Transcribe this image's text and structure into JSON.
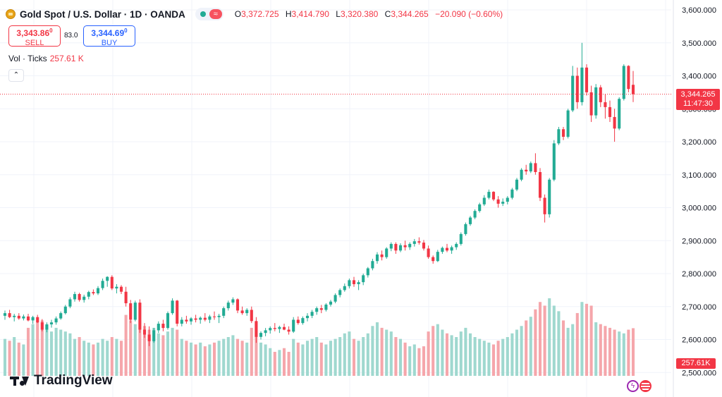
{
  "header": {
    "symbol_title": "Gold Spot / U.S. Dollar · 1D · OANDA",
    "ohlc": {
      "o_label": "O",
      "o_value": "3,372.725",
      "h_label": "H",
      "h_value": "3,414.790",
      "l_label": "L",
      "l_value": "3,320.380",
      "c_label": "C",
      "c_value": "3,344.265",
      "change": "−20.090 (−0.60%)"
    }
  },
  "trade": {
    "sell_price": "3,343.86",
    "sell_price_sup": "0",
    "sell_label": "SELL",
    "spread": "83.0",
    "buy_price": "3,344.69",
    "buy_price_sup": "0",
    "buy_label": "BUY"
  },
  "volume_legend": {
    "label": "Vol · Ticks",
    "value": "257.61 K"
  },
  "collapse_glyph": "⌃",
  "price_scale": {
    "last_price": "3,344.265",
    "countdown": "11:47:30",
    "volume_tag": "257.61K"
  },
  "branding": {
    "name": "TradingView"
  },
  "icons": [
    "gold-coin-icon",
    "green-dot-icon",
    "wave-icon",
    "chevron-up-icon",
    "tradingview-logo-icon",
    "lightning-icon",
    "us-flag-icon"
  ],
  "colors": {
    "up": "#22ab94",
    "down": "#f23645",
    "vol_up": "#9fd8cf",
    "vol_down": "#f5a6ab",
    "grid": "#f0f3fa",
    "text": "#131722"
  },
  "chart_data": {
    "type": "candlestick",
    "y_axis": {
      "ticks": [
        2500,
        2600,
        2700,
        2800,
        2900,
        3000,
        3100,
        3200,
        3300,
        3400,
        3500,
        3600
      ],
      "tick_labels": [
        "2,500.000",
        "2,600.000",
        "2,700.000",
        "2,800.000",
        "2,900.000",
        "3,000.000",
        "3,100.000",
        "3,200.000",
        "3,300.000",
        "3,400.000",
        "3,500.000",
        "3,600.000"
      ],
      "range": [
        2470,
        3610
      ]
    },
    "last_price": 3344.265,
    "vol_max_k": 420,
    "candles": [
      [
        2672,
        2688,
        2660,
        2680,
        200
      ],
      [
        2680,
        2690,
        2665,
        2668,
        190
      ],
      [
        2668,
        2678,
        2655,
        2672,
        210
      ],
      [
        2672,
        2680,
        2660,
        2664,
        180
      ],
      [
        2664,
        2676,
        2658,
        2670,
        170
      ],
      [
        2670,
        2678,
        2655,
        2658,
        260
      ],
      [
        2658,
        2672,
        2648,
        2668,
        280
      ],
      [
        2668,
        2675,
        2650,
        2652,
        290
      ],
      [
        2652,
        2662,
        2625,
        2630,
        300
      ],
      [
        2630,
        2652,
        2622,
        2646,
        270
      ],
      [
        2646,
        2660,
        2636,
        2652,
        240
      ],
      [
        2652,
        2670,
        2645,
        2664,
        260
      ],
      [
        2664,
        2685,
        2660,
        2680,
        250
      ],
      [
        2680,
        2705,
        2676,
        2700,
        240
      ],
      [
        2700,
        2728,
        2695,
        2722,
        230
      ],
      [
        2722,
        2745,
        2715,
        2738,
        200
      ],
      [
        2738,
        2742,
        2715,
        2720,
        210
      ],
      [
        2720,
        2736,
        2712,
        2730,
        190
      ],
      [
        2730,
        2748,
        2722,
        2744,
        180
      ],
      [
        2744,
        2752,
        2735,
        2740,
        170
      ],
      [
        2740,
        2762,
        2735,
        2756,
        180
      ],
      [
        2756,
        2785,
        2750,
        2778,
        200
      ],
      [
        2778,
        2792,
        2760,
        2790,
        190
      ],
      [
        2790,
        2795,
        2750,
        2755,
        210
      ],
      [
        2755,
        2768,
        2740,
        2760,
        200
      ],
      [
        2760,
        2765,
        2738,
        2745,
        190
      ],
      [
        2745,
        2760,
        2700,
        2710,
        330
      ],
      [
        2710,
        2720,
        2650,
        2660,
        300
      ],
      [
        2660,
        2718,
        2655,
        2712,
        280
      ],
      [
        2712,
        2722,
        2620,
        2630,
        300
      ],
      [
        2630,
        2650,
        2605,
        2615,
        270
      ],
      [
        2615,
        2640,
        2580,
        2595,
        250
      ],
      [
        2595,
        2635,
        2590,
        2628,
        260
      ],
      [
        2628,
        2655,
        2620,
        2648,
        230
      ],
      [
        2648,
        2660,
        2625,
        2635,
        220
      ],
      [
        2635,
        2685,
        2630,
        2680,
        240
      ],
      [
        2680,
        2725,
        2675,
        2718,
        260
      ],
      [
        2718,
        2720,
        2640,
        2648,
        250
      ],
      [
        2648,
        2668,
        2640,
        2660,
        200
      ],
      [
        2660,
        2672,
        2648,
        2655,
        190
      ],
      [
        2655,
        2668,
        2645,
        2664,
        180
      ],
      [
        2664,
        2675,
        2652,
        2660,
        170
      ],
      [
        2660,
        2670,
        2648,
        2666,
        180
      ],
      [
        2666,
        2680,
        2655,
        2660,
        160
      ],
      [
        2660,
        2675,
        2650,
        2670,
        170
      ],
      [
        2670,
        2685,
        2660,
        2668,
        180
      ],
      [
        2668,
        2678,
        2650,
        2672,
        190
      ],
      [
        2672,
        2700,
        2665,
        2695,
        200
      ],
      [
        2695,
        2718,
        2688,
        2712,
        210
      ],
      [
        2712,
        2728,
        2705,
        2722,
        220
      ],
      [
        2722,
        2725,
        2680,
        2688,
        200
      ],
      [
        2688,
        2700,
        2675,
        2680,
        190
      ],
      [
        2680,
        2695,
        2672,
        2690,
        180
      ],
      [
        2690,
        2700,
        2650,
        2656,
        260
      ],
      [
        2656,
        2668,
        2590,
        2608,
        290
      ],
      [
        2608,
        2625,
        2600,
        2620,
        180
      ],
      [
        2620,
        2635,
        2610,
        2628,
        170
      ],
      [
        2628,
        2640,
        2618,
        2635,
        150
      ],
      [
        2635,
        2650,
        2625,
        2632,
        130
      ],
      [
        2632,
        2642,
        2620,
        2638,
        140
      ],
      [
        2638,
        2648,
        2628,
        2630,
        150
      ],
      [
        2630,
        2640,
        2615,
        2624,
        130
      ],
      [
        2624,
        2668,
        2620,
        2660,
        200
      ],
      [
        2660,
        2670,
        2645,
        2650,
        180
      ],
      [
        2650,
        2670,
        2645,
        2665,
        170
      ],
      [
        2665,
        2680,
        2655,
        2672,
        190
      ],
      [
        2672,
        2690,
        2665,
        2684,
        200
      ],
      [
        2684,
        2700,
        2675,
        2695,
        210
      ],
      [
        2695,
        2705,
        2680,
        2690,
        180
      ],
      [
        2690,
        2710,
        2685,
        2706,
        170
      ],
      [
        2706,
        2720,
        2700,
        2715,
        190
      ],
      [
        2715,
        2740,
        2710,
        2735,
        200
      ],
      [
        2735,
        2755,
        2728,
        2750,
        210
      ],
      [
        2750,
        2770,
        2745,
        2762,
        230
      ],
      [
        2762,
        2785,
        2755,
        2780,
        240
      ],
      [
        2780,
        2790,
        2760,
        2768,
        200
      ],
      [
        2768,
        2780,
        2750,
        2774,
        190
      ],
      [
        2774,
        2800,
        2765,
        2795,
        210
      ],
      [
        2795,
        2820,
        2788,
        2816,
        230
      ],
      [
        2816,
        2845,
        2810,
        2838,
        270
      ],
      [
        2838,
        2865,
        2830,
        2858,
        290
      ],
      [
        2858,
        2870,
        2840,
        2850,
        260
      ],
      [
        2850,
        2880,
        2845,
        2876,
        250
      ],
      [
        2876,
        2895,
        2868,
        2890,
        240
      ],
      [
        2890,
        2895,
        2860,
        2870,
        210
      ],
      [
        2870,
        2892,
        2865,
        2886,
        200
      ],
      [
        2886,
        2900,
        2870,
        2880,
        180
      ],
      [
        2880,
        2895,
        2872,
        2890,
        160
      ],
      [
        2890,
        2905,
        2882,
        2898,
        170
      ],
      [
        2898,
        2910,
        2888,
        2894,
        150
      ],
      [
        2894,
        2902,
        2870,
        2876,
        160
      ],
      [
        2876,
        2885,
        2845,
        2850,
        240
      ],
      [
        2850,
        2855,
        2830,
        2838,
        270
      ],
      [
        2838,
        2872,
        2835,
        2866,
        280
      ],
      [
        2866,
        2882,
        2860,
        2878,
        250
      ],
      [
        2878,
        2890,
        2865,
        2870,
        230
      ],
      [
        2870,
        2885,
        2860,
        2880,
        220
      ],
      [
        2880,
        2895,
        2872,
        2890,
        210
      ],
      [
        2890,
        2925,
        2885,
        2920,
        240
      ],
      [
        2920,
        2955,
        2915,
        2950,
        260
      ],
      [
        2950,
        2975,
        2945,
        2970,
        230
      ],
      [
        2970,
        2995,
        2965,
        2990,
        210
      ],
      [
        2990,
        3015,
        2985,
        3010,
        200
      ],
      [
        3010,
        3038,
        3005,
        3030,
        190
      ],
      [
        3030,
        3055,
        3025,
        3048,
        180
      ],
      [
        3048,
        3050,
        3020,
        3025,
        170
      ],
      [
        3025,
        3035,
        3000,
        3012,
        190
      ],
      [
        3012,
        3028,
        3005,
        3018,
        200
      ],
      [
        3018,
        3035,
        3010,
        3030,
        210
      ],
      [
        3030,
        3060,
        3025,
        3055,
        230
      ],
      [
        3055,
        3090,
        3050,
        3085,
        250
      ],
      [
        3085,
        3120,
        3080,
        3115,
        270
      ],
      [
        3115,
        3130,
        3100,
        3110,
        300
      ],
      [
        3110,
        3140,
        3105,
        3135,
        320
      ],
      [
        3135,
        3165,
        3100,
        3108,
        360
      ],
      [
        3108,
        3120,
        3020,
        3030,
        400
      ],
      [
        3030,
        3040,
        2955,
        2980,
        380
      ],
      [
        2980,
        3090,
        2970,
        3085,
        420
      ],
      [
        3085,
        3205,
        3080,
        3195,
        380
      ],
      [
        3195,
        3245,
        3190,
        3238,
        350
      ],
      [
        3238,
        3245,
        3205,
        3215,
        300
      ],
      [
        3215,
        3300,
        3210,
        3295,
        260
      ],
      [
        3295,
        3430,
        3290,
        3400,
        280
      ],
      [
        3400,
        3425,
        3300,
        3320,
        340
      ],
      [
        3320,
        3500,
        3310,
        3425,
        400
      ],
      [
        3425,
        3435,
        3340,
        3350,
        390
      ],
      [
        3350,
        3370,
        3260,
        3280,
        380
      ],
      [
        3280,
        3375,
        3270,
        3365,
        290
      ],
      [
        3365,
        3372,
        3305,
        3320,
        280
      ],
      [
        3320,
        3345,
        3270,
        3305,
        270
      ],
      [
        3305,
        3325,
        3260,
        3275,
        260
      ],
      [
        3275,
        3300,
        3200,
        3240,
        250
      ],
      [
        3240,
        3335,
        3235,
        3330,
        240
      ],
      [
        3330,
        3435,
        3325,
        3430,
        230
      ],
      [
        3430,
        3432,
        3350,
        3360,
        250
      ],
      [
        3372.7,
        3414.8,
        3320.4,
        3344.3,
        258
      ]
    ]
  }
}
